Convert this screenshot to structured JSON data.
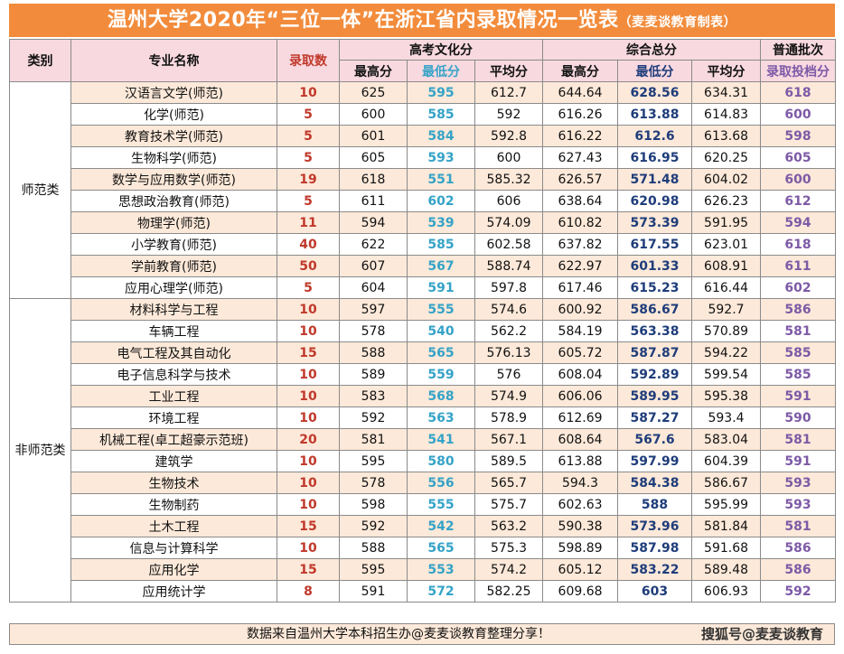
{
  "title": {
    "main": "温州大学2020年“三位一体”在浙江省内录取情况一览表",
    "sub": "（麦麦谈教育制表）"
  },
  "header": {
    "category": "类别",
    "major": "专业名称",
    "admitted": "录取数",
    "gaokao_group": "高考文化分",
    "composite_group": "综合总分",
    "batch_group": "普通批次",
    "max": "最高分",
    "min": "最低分",
    "avg": "平均分",
    "batch_line": "录取投档分"
  },
  "categories": {
    "normal": "师范类",
    "non_normal": "非师范类"
  },
  "rows": [
    {
      "major": "汉语言文学(师范)",
      "admitted": "10",
      "g_max": "625",
      "g_min": "595",
      "g_avg": "612.7",
      "c_max": "644.64",
      "c_min": "628.56",
      "c_avg": "634.31",
      "batch": "618"
    },
    {
      "major": "化学(师范)",
      "admitted": "5",
      "g_max": "600",
      "g_min": "585",
      "g_avg": "592",
      "c_max": "616.26",
      "c_min": "613.88",
      "c_avg": "614.83",
      "batch": "600"
    },
    {
      "major": "教育技术学(师范)",
      "admitted": "5",
      "g_max": "601",
      "g_min": "584",
      "g_avg": "592.8",
      "c_max": "616.22",
      "c_min": "612.6",
      "c_avg": "613.68",
      "batch": "598"
    },
    {
      "major": "生物科学(师范)",
      "admitted": "5",
      "g_max": "605",
      "g_min": "593",
      "g_avg": "600",
      "c_max": "627.43",
      "c_min": "616.95",
      "c_avg": "620.25",
      "batch": "605"
    },
    {
      "major": "数学与应用数学(师范)",
      "admitted": "19",
      "g_max": "618",
      "g_min": "551",
      "g_avg": "585.32",
      "c_max": "626.57",
      "c_min": "571.48",
      "c_avg": "604.02",
      "batch": "600"
    },
    {
      "major": "思想政治教育(师范)",
      "admitted": "5",
      "g_max": "611",
      "g_min": "602",
      "g_avg": "606",
      "c_max": "638.64",
      "c_min": "620.98",
      "c_avg": "626.23",
      "batch": "612"
    },
    {
      "major": "物理学(师范)",
      "admitted": "11",
      "g_max": "594",
      "g_min": "539",
      "g_avg": "574.09",
      "c_max": "610.82",
      "c_min": "573.39",
      "c_avg": "591.95",
      "batch": "594"
    },
    {
      "major": "小学教育(师范)",
      "admitted": "40",
      "g_max": "622",
      "g_min": "585",
      "g_avg": "602.58",
      "c_max": "637.82",
      "c_min": "617.55",
      "c_avg": "623.01",
      "batch": "618"
    },
    {
      "major": "学前教育(师范)",
      "admitted": "50",
      "g_max": "607",
      "g_min": "567",
      "g_avg": "588.74",
      "c_max": "622.97",
      "c_min": "601.33",
      "c_avg": "608.91",
      "batch": "611"
    },
    {
      "major": "应用心理学(师范)",
      "admitted": "5",
      "g_max": "604",
      "g_min": "591",
      "g_avg": "597.8",
      "c_max": "617.46",
      "c_min": "615.23",
      "c_avg": "616.44",
      "batch": "602"
    },
    {
      "major": "材料科学与工程",
      "admitted": "10",
      "g_max": "597",
      "g_min": "555",
      "g_avg": "574.6",
      "c_max": "600.92",
      "c_min": "586.67",
      "c_avg": "592.7",
      "batch": "586"
    },
    {
      "major": "车辆工程",
      "admitted": "10",
      "g_max": "578",
      "g_min": "540",
      "g_avg": "562.2",
      "c_max": "584.19",
      "c_min": "563.38",
      "c_avg": "570.89",
      "batch": "581"
    },
    {
      "major": "电气工程及其自动化",
      "admitted": "15",
      "g_max": "588",
      "g_min": "565",
      "g_avg": "576.13",
      "c_max": "605.72",
      "c_min": "587.87",
      "c_avg": "594.22",
      "batch": "585"
    },
    {
      "major": "电子信息科学与技术",
      "admitted": "10",
      "g_max": "589",
      "g_min": "559",
      "g_avg": "576",
      "c_max": "608.04",
      "c_min": "592.89",
      "c_avg": "599.54",
      "batch": "585"
    },
    {
      "major": "工业工程",
      "admitted": "10",
      "g_max": "583",
      "g_min": "568",
      "g_avg": "574.9",
      "c_max": "606.06",
      "c_min": "589.95",
      "c_avg": "595.38",
      "batch": "591"
    },
    {
      "major": "环境工程",
      "admitted": "10",
      "g_max": "592",
      "g_min": "563",
      "g_avg": "578.9",
      "c_max": "612.69",
      "c_min": "587.27",
      "c_avg": "593.4",
      "batch": "590"
    },
    {
      "major": "机械工程(卓工超豪示范班)",
      "admitted": "20",
      "g_max": "581",
      "g_min": "541",
      "g_avg": "567.1",
      "c_max": "608.64",
      "c_min": "567.6",
      "c_avg": "583.04",
      "batch": "581"
    },
    {
      "major": "建筑学",
      "admitted": "10",
      "g_max": "595",
      "g_min": "580",
      "g_avg": "589.5",
      "c_max": "613.88",
      "c_min": "597.99",
      "c_avg": "604.39",
      "batch": "591"
    },
    {
      "major": "生物技术",
      "admitted": "10",
      "g_max": "578",
      "g_min": "556",
      "g_avg": "565.7",
      "c_max": "594.3",
      "c_min": "584.38",
      "c_avg": "586.67",
      "batch": "593"
    },
    {
      "major": "生物制药",
      "admitted": "10",
      "g_max": "598",
      "g_min": "555",
      "g_avg": "575.7",
      "c_max": "602.63",
      "c_min": "588",
      "c_avg": "595.99",
      "batch": "593"
    },
    {
      "major": "土木工程",
      "admitted": "15",
      "g_max": "592",
      "g_min": "542",
      "g_avg": "563.2",
      "c_max": "590.38",
      "c_min": "573.96",
      "c_avg": "581.84",
      "batch": "581"
    },
    {
      "major": "信息与计算科学",
      "admitted": "10",
      "g_max": "588",
      "g_min": "565",
      "g_avg": "575.3",
      "c_max": "598.89",
      "c_min": "587.98",
      "c_avg": "591.68",
      "batch": "586"
    },
    {
      "major": "应用化学",
      "admitted": "15",
      "g_max": "595",
      "g_min": "553",
      "g_avg": "574.2",
      "c_max": "605.12",
      "c_min": "583.22",
      "c_avg": "589.48",
      "batch": "586"
    },
    {
      "major": "应用统计学",
      "admitted": "8",
      "g_max": "591",
      "g_min": "572",
      "g_avg": "582.25",
      "c_max": "609.68",
      "c_min": "603",
      "c_avg": "606.93",
      "batch": "592"
    }
  ],
  "footer": {
    "note": "数据来自温州大学本科招生办@麦麦谈教育整理分享！",
    "watermark": "搜狐号@麦麦谈教育"
  },
  "colors": {
    "title_bg": "#f28c3c",
    "header_bg": "#f8d9e0",
    "stripe_bg": "#fde9d9",
    "admitted_red": "#c0392b",
    "gaokao_min_teal": "#35a3c7",
    "composite_min_navy": "#1f3d7a",
    "batch_purple": "#7d5aa6"
  }
}
